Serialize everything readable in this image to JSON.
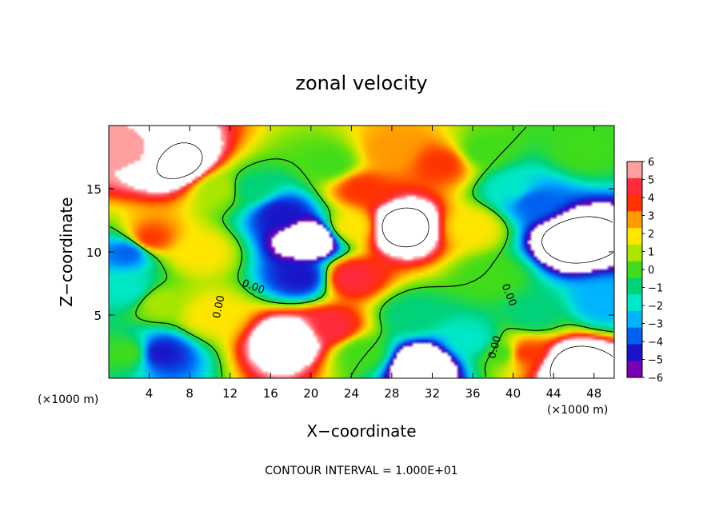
{
  "chart_data": {
    "type": "heatmap",
    "title": "zonal velocity",
    "xlabel": "X−coordinate",
    "ylabel": "Z−coordinate",
    "x_unit_left": "(×1000 m)",
    "x_unit_right": "(×1000 m)",
    "footer": "CONTOUR INTERVAL = 1.000E+01",
    "xlim": [
      0,
      50
    ],
    "ylim": [
      0,
      20
    ],
    "x_ticks": [
      4,
      8,
      12,
      16,
      20,
      24,
      28,
      32,
      36,
      40,
      44,
      48
    ],
    "y_ticks": [
      5,
      10,
      15
    ],
    "contour_label": "0.00",
    "colorbar": {
      "ticks": [
        6,
        5,
        4,
        3,
        2,
        1,
        0,
        -1,
        -2,
        -3,
        -4,
        -5,
        -6
      ],
      "tick_labels": [
        "6",
        "5",
        "4",
        "3",
        "2",
        "1",
        "0",
        "−1",
        "−2",
        "−3",
        "−4",
        "−5",
        "−6"
      ],
      "range": [
        -6,
        6
      ],
      "out_of_range_color": "#ffffff",
      "stops": [
        "#7a00b4",
        "#1a14c8",
        "#0060f0",
        "#00b4ff",
        "#00e8c8",
        "#00d27a",
        "#40dc1a",
        "#aae600",
        "#ffe600",
        "#ff9a00",
        "#ff3200",
        "#ff2a3c",
        "#ffa0a0"
      ]
    },
    "features": [
      {
        "x": 7,
        "y": 17,
        "v": 11
      },
      {
        "x": 2,
        "y": 18,
        "v": 6
      },
      {
        "x": 4,
        "y": 11,
        "v": 4
      },
      {
        "x": 2,
        "y": 10,
        "v": -4
      },
      {
        "x": 2,
        "y": 7,
        "v": -2
      },
      {
        "x": 2,
        "y": 2,
        "v": 0
      },
      {
        "x": 5,
        "y": 2,
        "v": -5
      },
      {
        "x": 5,
        "y": 6,
        "v": 1
      },
      {
        "x": 9,
        "y": 10,
        "v": 2
      },
      {
        "x": 10,
        "y": 5,
        "v": 2
      },
      {
        "x": 11,
        "y": 15,
        "v": 1
      },
      {
        "x": 14,
        "y": 15,
        "v": -1
      },
      {
        "x": 17,
        "y": 13,
        "v": -5
      },
      {
        "x": 20,
        "y": 11,
        "v": -10
      },
      {
        "x": 19,
        "y": 8,
        "v": -5
      },
      {
        "x": 22,
        "y": 17,
        "v": 0
      },
      {
        "x": 24,
        "y": 12,
        "v": 2
      },
      {
        "x": 24,
        "y": 8,
        "v": 5
      },
      {
        "x": 18,
        "y": 3,
        "v": 9
      },
      {
        "x": 22,
        "y": 4,
        "v": 5
      },
      {
        "x": 25,
        "y": 2,
        "v": 0
      },
      {
        "x": 25,
        "y": 15,
        "v": 4
      },
      {
        "x": 28,
        "y": 18,
        "v": 3
      },
      {
        "x": 29,
        "y": 12,
        "v": 12
      },
      {
        "x": 33,
        "y": 17,
        "v": 4
      },
      {
        "x": 36,
        "y": 12,
        "v": 2
      },
      {
        "x": 37,
        "y": 18,
        "v": 0
      },
      {
        "x": 30,
        "y": 5,
        "v": -1
      },
      {
        "x": 31,
        "y": 1,
        "v": -10
      },
      {
        "x": 36,
        "y": 3,
        "v": -2
      },
      {
        "x": 38,
        "y": 8,
        "v": 0
      },
      {
        "x": 40,
        "y": 15,
        "v": -2
      },
      {
        "x": 42,
        "y": 14,
        "v": -4
      },
      {
        "x": 46,
        "y": 11,
        "v": -12
      },
      {
        "x": 47,
        "y": 18,
        "v": 0
      },
      {
        "x": 49,
        "y": 6,
        "v": -3
      },
      {
        "x": 42,
        "y": 5,
        "v": -1
      },
      {
        "x": 41,
        "y": 2,
        "v": 4
      },
      {
        "x": 46,
        "y": 1,
        "v": 12
      },
      {
        "x": 39,
        "y": 2,
        "v": 0
      }
    ]
  }
}
